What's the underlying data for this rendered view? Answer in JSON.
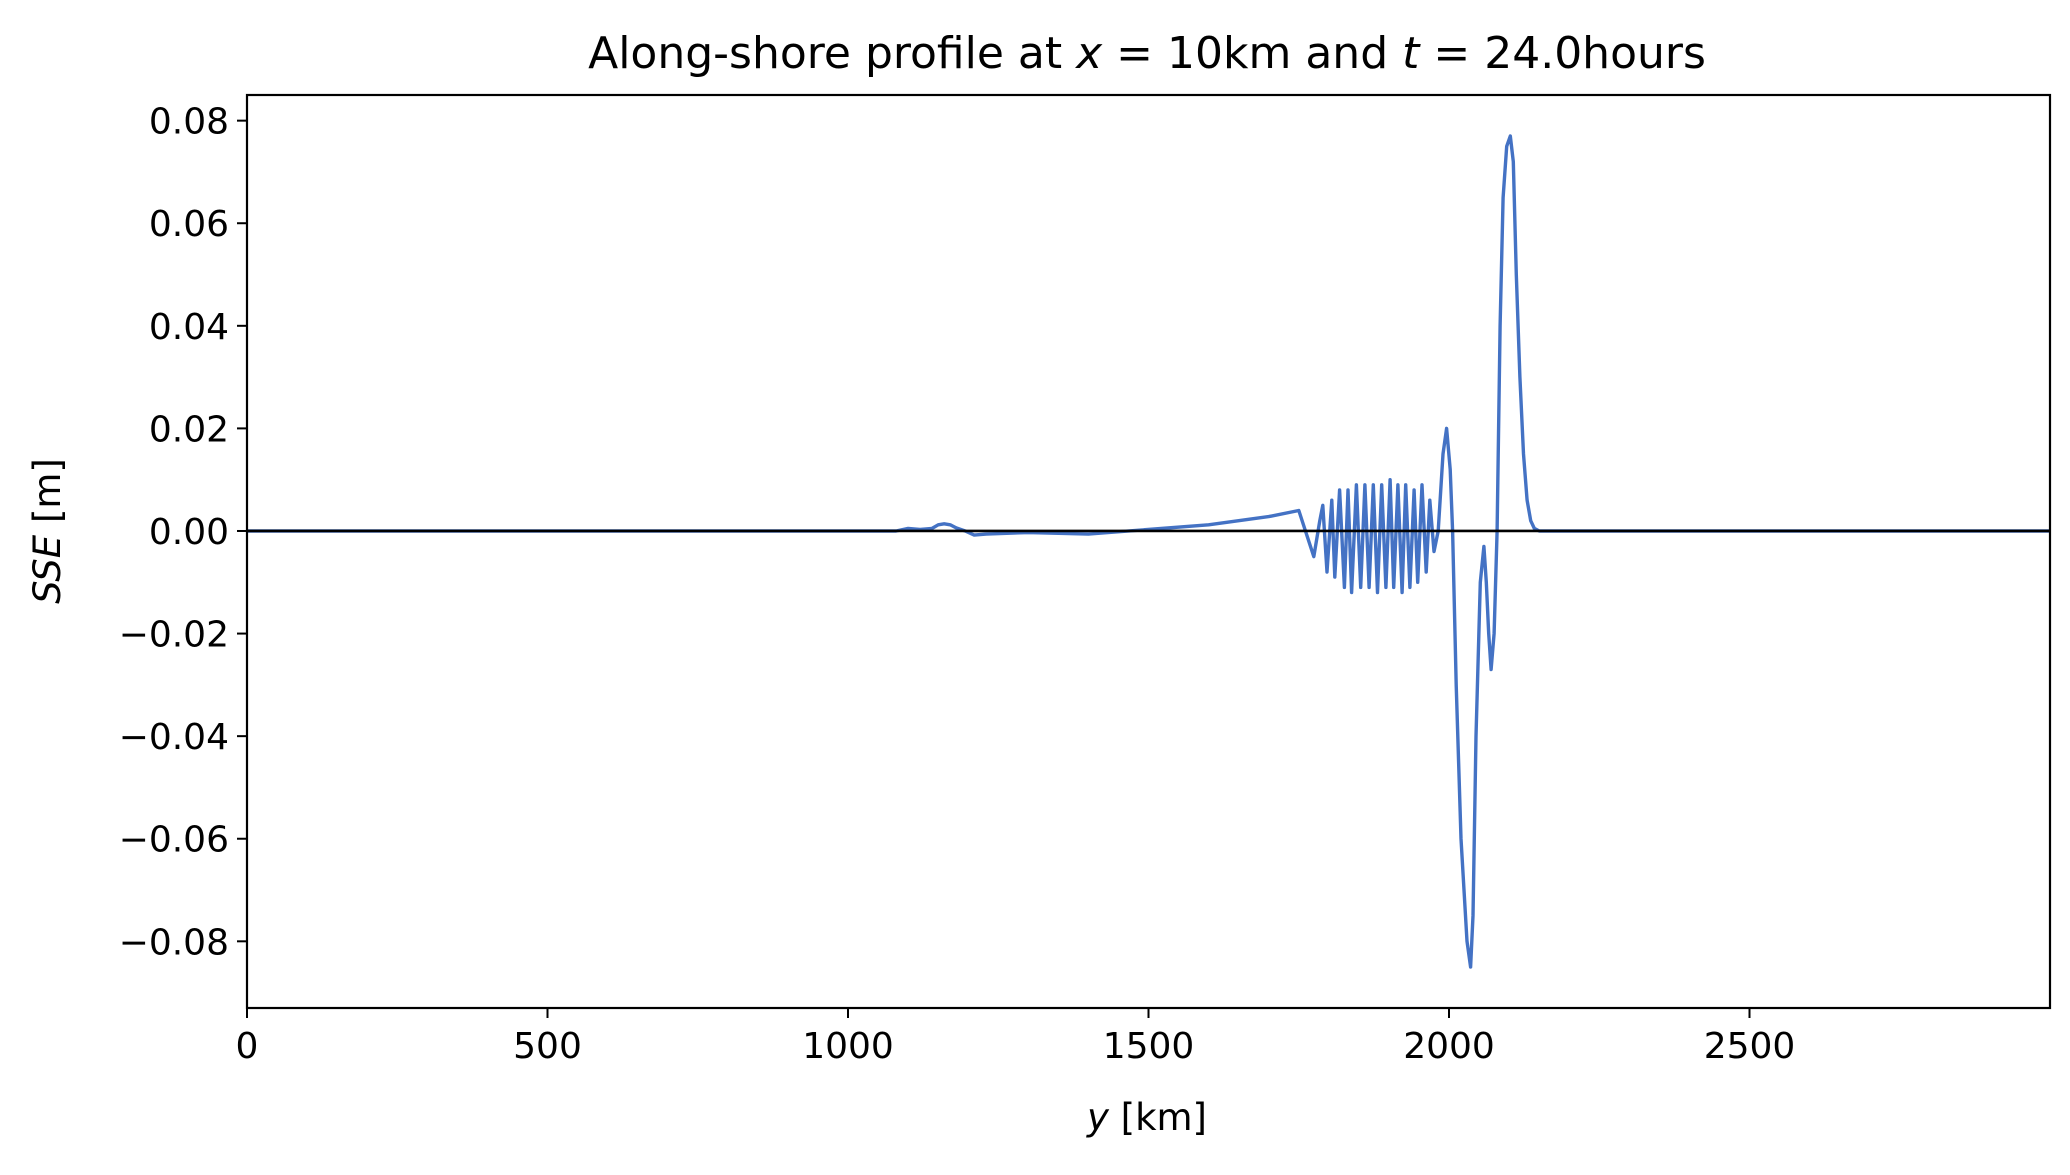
{
  "chart_data": {
    "type": "line",
    "title": {
      "prefix": "Along-shore profile at ",
      "var1": "x",
      "mid1": " = 10km and ",
      "var2": "t",
      "mid2": " = 24.0hours"
    },
    "xlabel": {
      "var": "y",
      "rest": " [km]"
    },
    "ylabel": {
      "var": "SSE",
      "rest": " [m]"
    },
    "xlim": [
      0,
      3000
    ],
    "ylim": [
      -0.093,
      0.085
    ],
    "xticks": [
      {
        "value": 0,
        "label": "0"
      },
      {
        "value": 500,
        "label": "500"
      },
      {
        "value": 1000,
        "label": "1000"
      },
      {
        "value": 1500,
        "label": "1500"
      },
      {
        "value": 2000,
        "label": "2000"
      },
      {
        "value": 2500,
        "label": "2500"
      }
    ],
    "yticks": [
      {
        "value": 0.08,
        "label": "0.08"
      },
      {
        "value": 0.06,
        "label": "0.06"
      },
      {
        "value": 0.04,
        "label": "0.04"
      },
      {
        "value": 0.02,
        "label": "0.02"
      },
      {
        "value": 0.0,
        "label": "0.00"
      },
      {
        "value": -0.02,
        "label": "−0.02"
      },
      {
        "value": -0.04,
        "label": "−0.04"
      },
      {
        "value": -0.06,
        "label": "−0.06"
      },
      {
        "value": -0.08,
        "label": "−0.08"
      }
    ],
    "zero_line": {
      "y": 0.0,
      "color": "#000000"
    },
    "grid": false,
    "series": [
      {
        "color": "#4472c4",
        "x": [
          0,
          1080,
          1100,
          1120,
          1140,
          1150,
          1160,
          1170,
          1180,
          1195,
          1210,
          1230,
          1300,
          1400,
          1600,
          1700,
          1750,
          1775,
          1785,
          1790,
          1797,
          1805,
          1810,
          1818,
          1826,
          1832,
          1838,
          1846,
          1853,
          1860,
          1867,
          1874,
          1881,
          1888,
          1895,
          1902,
          1908,
          1915,
          1922,
          1928,
          1935,
          1942,
          1948,
          1955,
          1962,
          1968,
          1975,
          1982,
          1990,
          1996,
          2002,
          2006,
          2012,
          2020,
          2030,
          2036,
          2040,
          2045,
          2052,
          2058,
          2062,
          2066,
          2070,
          2075,
          2080,
          2085,
          2090,
          2096,
          2102,
          2107,
          2112,
          2118,
          2124,
          2130,
          2136,
          2142,
          2150,
          2160,
          2170,
          2180,
          3000
        ],
        "y": [
          0.0,
          0.0,
          0.0005,
          0.0003,
          0.0005,
          0.0012,
          0.0014,
          0.0012,
          0.0006,
          0.0,
          -0.0008,
          -0.0006,
          -0.0003,
          -0.0006,
          0.0012,
          0.0028,
          0.004,
          -0.005,
          0.002,
          0.005,
          -0.008,
          0.006,
          -0.009,
          0.008,
          -0.011,
          0.008,
          -0.012,
          0.009,
          -0.011,
          0.009,
          -0.011,
          0.009,
          -0.012,
          0.009,
          -0.011,
          0.01,
          -0.011,
          0.009,
          -0.012,
          0.009,
          -0.011,
          0.008,
          -0.01,
          0.009,
          -0.008,
          0.006,
          -0.004,
          0.0,
          0.015,
          0.02,
          0.012,
          0.0,
          -0.03,
          -0.06,
          -0.08,
          -0.085,
          -0.075,
          -0.04,
          -0.01,
          -0.003,
          -0.01,
          -0.02,
          -0.027,
          -0.02,
          0.0,
          0.04,
          0.065,
          0.075,
          0.077,
          0.072,
          0.05,
          0.03,
          0.015,
          0.006,
          0.002,
          0.0005,
          0.0,
          0.0,
          0.0,
          0.0,
          0.0
        ]
      }
    ]
  }
}
